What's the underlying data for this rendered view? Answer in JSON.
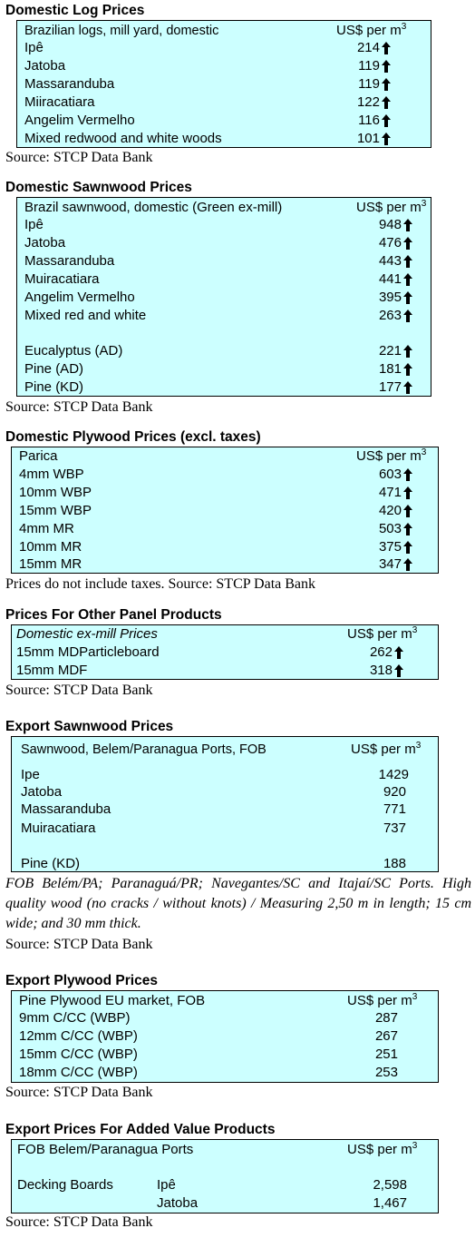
{
  "sections": [
    {
      "title": "Domestic Log Prices",
      "header_label": "Brazilian logs, mill yard, domestic",
      "header_unit": "US$ per m",
      "header_unit_sup": "3",
      "rows": [
        {
          "label": "Ipê",
          "value": "214",
          "trend": "up"
        },
        {
          "label": "Jatoba",
          "value": "119",
          "trend": "up"
        },
        {
          "label": "Massaranduba",
          "value": "119",
          "trend": "up"
        },
        {
          "label": "Miiracatiara",
          "value": "122",
          "trend": "up"
        },
        {
          "label": "Angelim Vermelho",
          "value": "116",
          "trend": "up"
        },
        {
          "label": "Mixed redwood and white woods",
          "value": "101",
          "trend": "up"
        }
      ],
      "source": "Source: STCP Data Bank"
    },
    {
      "title": "Domestic Sawnwood Prices",
      "header_label": "Brazil sawnwood, domestic (Green ex-mill)",
      "header_unit": "US$ per m",
      "header_unit_sup": "3",
      "rows": [
        {
          "label": "Ipê",
          "value": "948",
          "trend": "up"
        },
        {
          "label": "Jatoba",
          "value": "476",
          "trend": "up"
        },
        {
          "label": "Massaranduba",
          "value": "443",
          "trend": "up"
        },
        {
          "label": "Muiracatiara",
          "value": "441",
          "trend": "up"
        },
        {
          "label": "Angelim Vermelho",
          "value": "395",
          "trend": "up"
        },
        {
          "label": "Mixed red and white",
          "value": "263",
          "trend": "up"
        },
        {
          "label": "Eucalyptus (AD)",
          "value": "221",
          "trend": "up"
        },
        {
          "label": "Pine (AD)",
          "value": "181",
          "trend": "up"
        },
        {
          "label": "Pine (KD)",
          "value": "177",
          "trend": "up"
        }
      ],
      "source": "Source: STCP Data Bank"
    },
    {
      "title": "Domestic Plywood Prices (excl. taxes)",
      "header_label": "Parica",
      "header_unit": "US$ per m",
      "header_unit_sup": "3",
      "rows": [
        {
          "label": "4mm WBP",
          "value": "603",
          "trend": "up"
        },
        {
          "label": "10mm WBP",
          "value": "471",
          "trend": "up"
        },
        {
          "label": "15mm WBP",
          "value": "420",
          "trend": "up"
        },
        {
          "label": "4mm MR",
          "value": "503",
          "trend": "up"
        },
        {
          "label": "10mm MR",
          "value": "375",
          "trend": "up"
        },
        {
          "label": "15mm MR",
          "value": "347",
          "trend": "up"
        }
      ],
      "source": "Prices do not include taxes. Source: STCP Data Bank"
    },
    {
      "title": "Prices For Other Panel Products",
      "header_label": "Domestic ex-mill Prices",
      "header_unit": "US$ per m",
      "header_unit_sup": "3",
      "rows": [
        {
          "label": "15mm MDParticleboard",
          "value": "262",
          "trend": "up"
        },
        {
          "label": "15mm MDF",
          "value": "318",
          "trend": "up"
        }
      ],
      "source": "Source: STCP Data Bank"
    },
    {
      "title": "Export Sawnwood Prices",
      "header_label": "Sawnwood, Belem/Paranagua Ports, FOB",
      "header_unit": "US$ per m",
      "header_unit_sup": "3",
      "rows": [
        {
          "label": "Ipe",
          "value": "1429"
        },
        {
          "label": "Jatoba",
          "value": "920"
        },
        {
          "label": "Massaranduba",
          "value": "771"
        },
        {
          "label": "Muiracatiara",
          "value": "737"
        },
        {
          "label": "Pine (KD)",
          "value": "188"
        }
      ],
      "note": "FOB Belém/PA; Paranaguá/PR; Navegantes/SC and Itajaí/SC Ports. High quality wood (no cracks / without knots) / Measuring 2,50 m in length; 15 cm wide; and 30 mm thick.",
      "source": "Source: STCP Data Bank"
    },
    {
      "title": "Export Plywood Prices",
      "header_label": "Pine Plywood EU market, FOB",
      "header_unit": "US$ per m",
      "header_unit_sup": "3",
      "rows": [
        {
          "label": "9mm C/CC (WBP)",
          "value": "287"
        },
        {
          "label": "12mm C/CC (WBP)",
          "value": "267"
        },
        {
          "label": "15mm C/CC (WBP)",
          "value": "251"
        },
        {
          "label": "18mm C/CC (WBP)",
          "value": "253"
        }
      ],
      "source": "Source: STCP Data Bank"
    },
    {
      "title": "Export Prices For Added Value Products",
      "header_label": "FOB Belem/Paranagua Ports",
      "header_unit": "US$ per m",
      "header_unit_sup": "3",
      "group_label": "Decking Boards",
      "rows": [
        {
          "label": "Ipê",
          "value": "2,598"
        },
        {
          "label": "Jatoba",
          "value": "1,467"
        }
      ],
      "source": "Source: STCP Data Bank"
    }
  ],
  "icons": {
    "trend_up": "up-arrow-icon"
  }
}
